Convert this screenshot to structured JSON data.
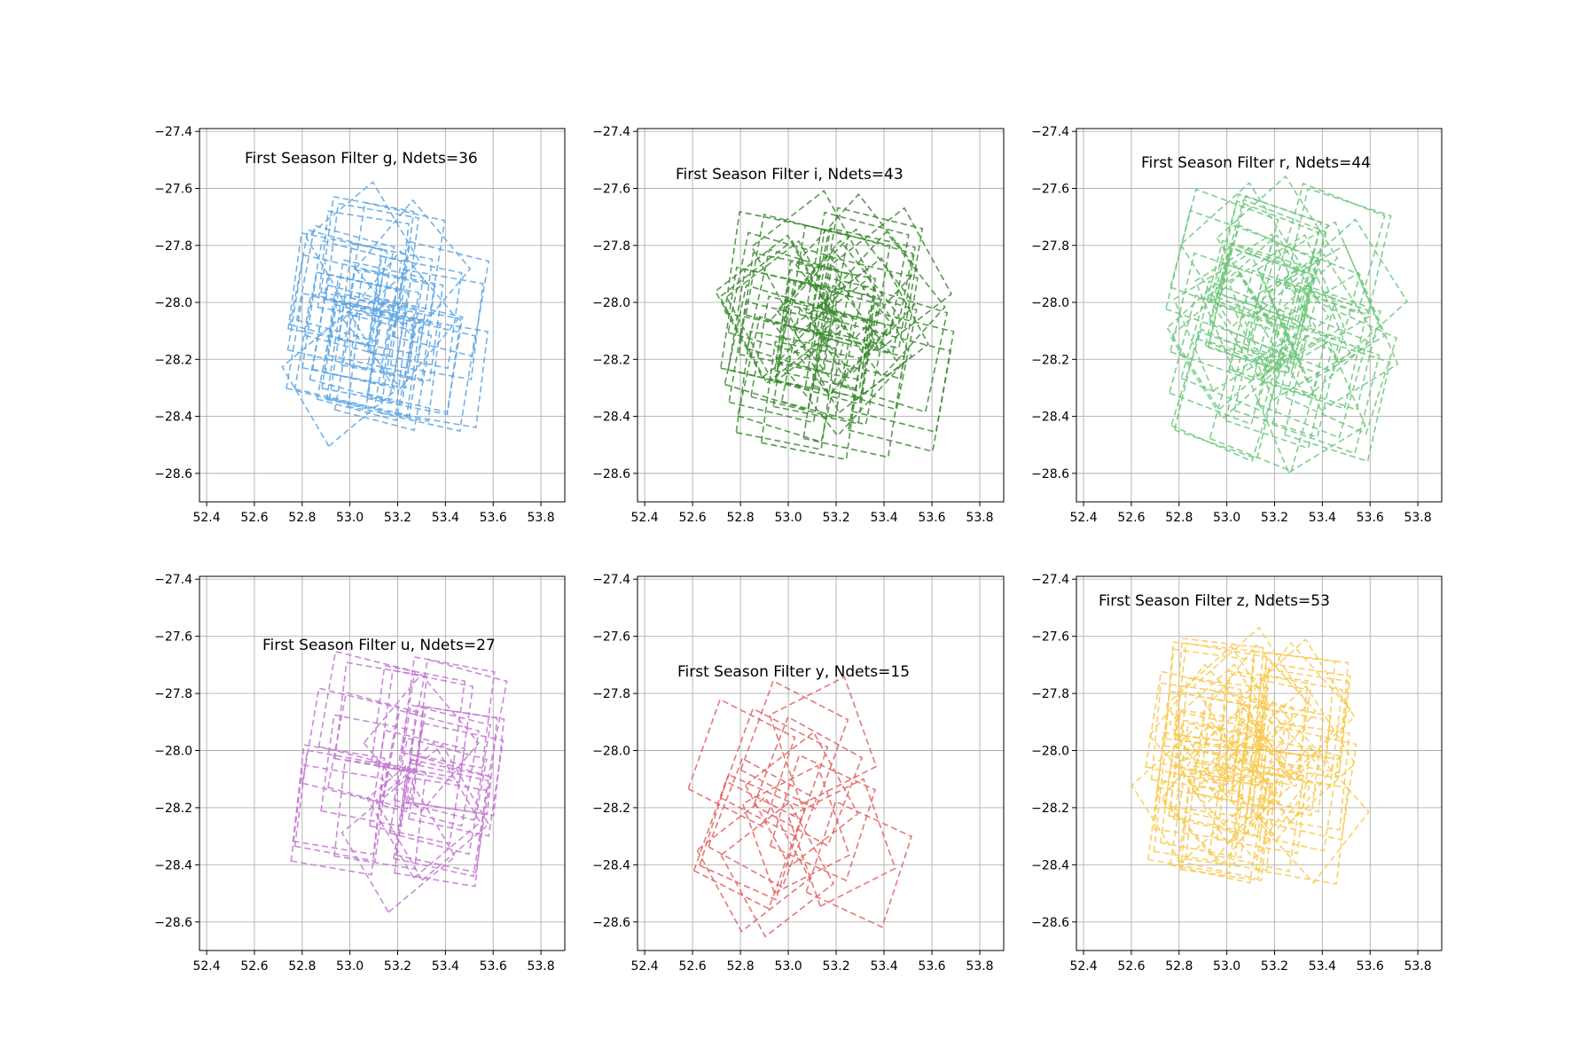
{
  "chart_data": [
    {
      "type": "scatter",
      "title": "First Season Filter g, Ndets=36",
      "color": "#5DA5E3",
      "line_style": "dashed",
      "xlim": [
        52.37,
        53.9
      ],
      "ylim": [
        -28.7,
        -27.39
      ],
      "xticks": [
        52.4,
        52.6,
        52.8,
        53.0,
        53.2,
        53.4,
        53.6,
        53.8
      ],
      "yticks": [
        -28.6,
        -28.4,
        -28.2,
        -28.0,
        -27.8,
        -27.6,
        -27.4
      ],
      "grid": true,
      "n_footprints": 36
    },
    {
      "type": "scatter",
      "title": "First Season Filter i, Ndets=43",
      "color": "#3A8A2E",
      "line_style": "dashed",
      "xlim": [
        52.37,
        53.9
      ],
      "ylim": [
        -28.7,
        -27.39
      ],
      "xticks": [
        52.4,
        52.6,
        52.8,
        53.0,
        53.2,
        53.4,
        53.6,
        53.8
      ],
      "yticks": [
        -28.6,
        -28.4,
        -28.2,
        -28.0,
        -27.8,
        -27.6,
        -27.4
      ],
      "grid": true,
      "n_footprints": 43
    },
    {
      "type": "scatter",
      "title": "First Season Filter r, Ndets=44",
      "color": "#6CC67A",
      "line_style": "dashed",
      "xlim": [
        52.37,
        53.9
      ],
      "ylim": [
        -28.7,
        -27.39
      ],
      "xticks": [
        52.4,
        52.6,
        52.8,
        53.0,
        53.2,
        53.4,
        53.6,
        53.8
      ],
      "yticks": [
        -28.6,
        -28.4,
        -28.2,
        -28.0,
        -27.8,
        -27.6,
        -27.4
      ],
      "grid": true,
      "n_footprints": 44
    },
    {
      "type": "scatter",
      "title": "First Season Filter u, Ndets=27",
      "color": "#C276D0",
      "line_style": "dashed",
      "xlim": [
        52.37,
        53.9
      ],
      "ylim": [
        -28.7,
        -27.39
      ],
      "xticks": [
        52.4,
        52.6,
        52.8,
        53.0,
        53.2,
        53.4,
        53.6,
        53.8
      ],
      "yticks": [
        -28.6,
        -28.4,
        -28.2,
        -28.0,
        -27.8,
        -27.6,
        -27.4
      ],
      "grid": true,
      "n_footprints": 27
    },
    {
      "type": "scatter",
      "title": "First Season Filter y, Ndets=15",
      "color": "#E0605E",
      "line_style": "dashed",
      "xlim": [
        52.37,
        53.9
      ],
      "ylim": [
        -28.7,
        -27.39
      ],
      "xticks": [
        52.4,
        52.6,
        52.8,
        53.0,
        53.2,
        53.4,
        53.6,
        53.8
      ],
      "yticks": [
        -28.6,
        -28.4,
        -28.2,
        -28.0,
        -27.8,
        -27.6,
        -27.4
      ],
      "grid": true,
      "n_footprints": 15
    },
    {
      "type": "scatter",
      "title": "First Season Filter z, Ndets=53",
      "color": "#F8C94F",
      "line_style": "dashed",
      "xlim": [
        52.37,
        53.9
      ],
      "ylim": [
        -28.7,
        -27.39
      ],
      "xticks": [
        52.4,
        52.6,
        52.8,
        53.0,
        53.2,
        53.4,
        53.6,
        53.8
      ],
      "yticks": [
        -28.6,
        -28.4,
        -28.2,
        -28.0,
        -27.8,
        -27.6,
        -27.4
      ],
      "grid": true,
      "n_footprints": 53
    }
  ]
}
